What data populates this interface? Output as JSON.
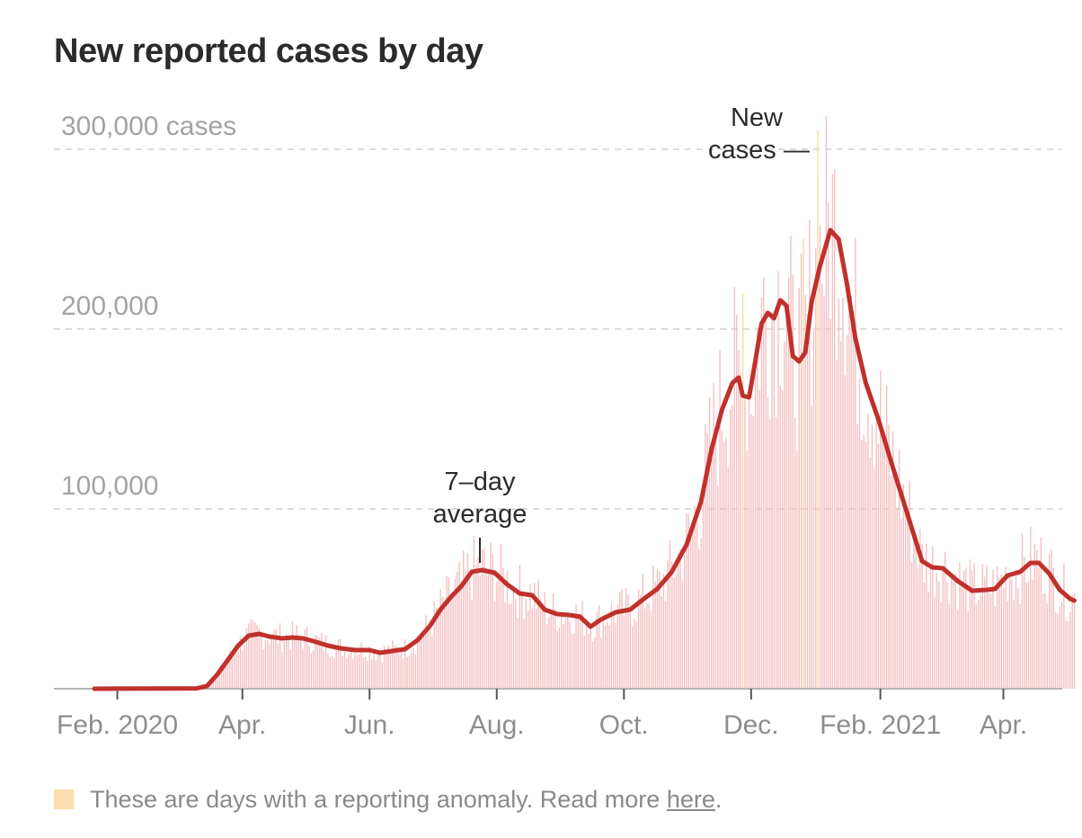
{
  "title": "New reported cases by day",
  "colors": {
    "bar": "#f3c1c3",
    "anomaly": "#f6dca0",
    "line": "#c0312b",
    "grid": "#dcdcdc",
    "axis": "#b5b5b5"
  },
  "chart_data": {
    "type": "bar",
    "title": "New reported cases by day",
    "xlabel": "",
    "ylabel": "",
    "ylim": [
      0,
      300000
    ],
    "yticks": [
      {
        "value": 300000,
        "label": "300,000 cases"
      },
      {
        "value": 200000,
        "label": "200,000"
      },
      {
        "value": 100000,
        "label": "100,000"
      }
    ],
    "x_range": [
      "2020-01-21",
      "2021-05-15"
    ],
    "xticks": [
      {
        "date": "2020-02-01",
        "label": "Feb. 2020"
      },
      {
        "date": "2020-04-01",
        "label": "Apr."
      },
      {
        "date": "2020-06-01",
        "label": "Jun."
      },
      {
        "date": "2020-08-01",
        "label": "Aug."
      },
      {
        "date": "2020-10-01",
        "label": "Oct."
      },
      {
        "date": "2020-12-01",
        "label": "Dec."
      },
      {
        "date": "2021-02-01",
        "label": "Feb. 2021"
      },
      {
        "date": "2021-04-01",
        "label": "Apr."
      }
    ],
    "grid": true,
    "series": [
      {
        "name": "New cases",
        "kind": "daily bars",
        "anomaly_dates": [
          "2020-11-27",
          "2020-12-26",
          "2021-01-02"
        ]
      },
      {
        "name": "7–day average",
        "kind": "line",
        "points": [
          [
            "2020-01-21",
            0
          ],
          [
            "2020-03-10",
            200
          ],
          [
            "2020-03-15",
            1500
          ],
          [
            "2020-03-20",
            8000
          ],
          [
            "2020-03-25",
            16000
          ],
          [
            "2020-03-30",
            24000
          ],
          [
            "2020-04-04",
            29500
          ],
          [
            "2020-04-09",
            30500
          ],
          [
            "2020-04-14",
            29000
          ],
          [
            "2020-04-20",
            28000
          ],
          [
            "2020-04-25",
            28500
          ],
          [
            "2020-04-30",
            28000
          ],
          [
            "2020-05-05",
            26500
          ],
          [
            "2020-05-12",
            24000
          ],
          [
            "2020-05-18",
            22500
          ],
          [
            "2020-05-25",
            21500
          ],
          [
            "2020-06-01",
            21500
          ],
          [
            "2020-06-06",
            20000
          ],
          [
            "2020-06-12",
            21000
          ],
          [
            "2020-06-18",
            22000
          ],
          [
            "2020-06-24",
            27000
          ],
          [
            "2020-06-30",
            35000
          ],
          [
            "2020-07-05",
            44000
          ],
          [
            "2020-07-10",
            51000
          ],
          [
            "2020-07-15",
            57000
          ],
          [
            "2020-07-20",
            65000
          ],
          [
            "2020-07-25",
            66000
          ],
          [
            "2020-07-31",
            64500
          ],
          [
            "2020-08-06",
            58000
          ],
          [
            "2020-08-12",
            53000
          ],
          [
            "2020-08-18",
            52000
          ],
          [
            "2020-08-24",
            44000
          ],
          [
            "2020-08-30",
            41500
          ],
          [
            "2020-09-05",
            41000
          ],
          [
            "2020-09-10",
            40000
          ],
          [
            "2020-09-15",
            34500
          ],
          [
            "2020-09-20",
            38500
          ],
          [
            "2020-09-27",
            42500
          ],
          [
            "2020-10-04",
            44000
          ],
          [
            "2020-10-10",
            49500
          ],
          [
            "2020-10-17",
            55500
          ],
          [
            "2020-10-24",
            65000
          ],
          [
            "2020-10-31",
            80000
          ],
          [
            "2020-11-07",
            104000
          ],
          [
            "2020-11-12",
            133000
          ],
          [
            "2020-11-17",
            155000
          ],
          [
            "2020-11-22",
            170000
          ],
          [
            "2020-11-25",
            173000
          ],
          [
            "2020-11-27",
            163000
          ],
          [
            "2020-11-30",
            162000
          ],
          [
            "2020-12-03",
            182000
          ],
          [
            "2020-12-06",
            203000
          ],
          [
            "2020-12-09",
            209000
          ],
          [
            "2020-12-12",
            206000
          ],
          [
            "2020-12-15",
            216000
          ],
          [
            "2020-12-18",
            213000
          ],
          [
            "2020-12-21",
            185000
          ],
          [
            "2020-12-24",
            182000
          ],
          [
            "2020-12-27",
            187000
          ],
          [
            "2020-12-30",
            215000
          ],
          [
            "2021-01-03",
            235000
          ],
          [
            "2021-01-08",
            255000
          ],
          [
            "2021-01-12",
            250000
          ],
          [
            "2021-01-16",
            225000
          ],
          [
            "2021-01-20",
            195000
          ],
          [
            "2021-01-25",
            170000
          ],
          [
            "2021-01-31",
            150000
          ],
          [
            "2021-02-07",
            123000
          ],
          [
            "2021-02-14",
            97000
          ],
          [
            "2021-02-21",
            71000
          ],
          [
            "2021-02-26",
            67500
          ],
          [
            "2021-03-03",
            67000
          ],
          [
            "2021-03-10",
            60000
          ],
          [
            "2021-03-17",
            54500
          ],
          [
            "2021-03-24",
            55000
          ],
          [
            "2021-03-28",
            55500
          ],
          [
            "2021-04-03",
            63000
          ],
          [
            "2021-04-09",
            65000
          ],
          [
            "2021-04-14",
            70000
          ],
          [
            "2021-04-18",
            70000
          ],
          [
            "2021-04-23",
            64000
          ],
          [
            "2021-04-28",
            55000
          ],
          [
            "2021-05-03",
            50000
          ],
          [
            "2021-05-05",
            49000
          ]
        ]
      }
    ],
    "annotations": [
      {
        "text_lines": [
          "New",
          "cases —"
        ],
        "target": "New cases"
      },
      {
        "text_lines": [
          "7–day",
          "average"
        ],
        "target": "7–day average"
      }
    ],
    "footnote": {
      "text": "These are days with a reporting anomaly. Read more ",
      "link": "here",
      "end": "."
    }
  }
}
